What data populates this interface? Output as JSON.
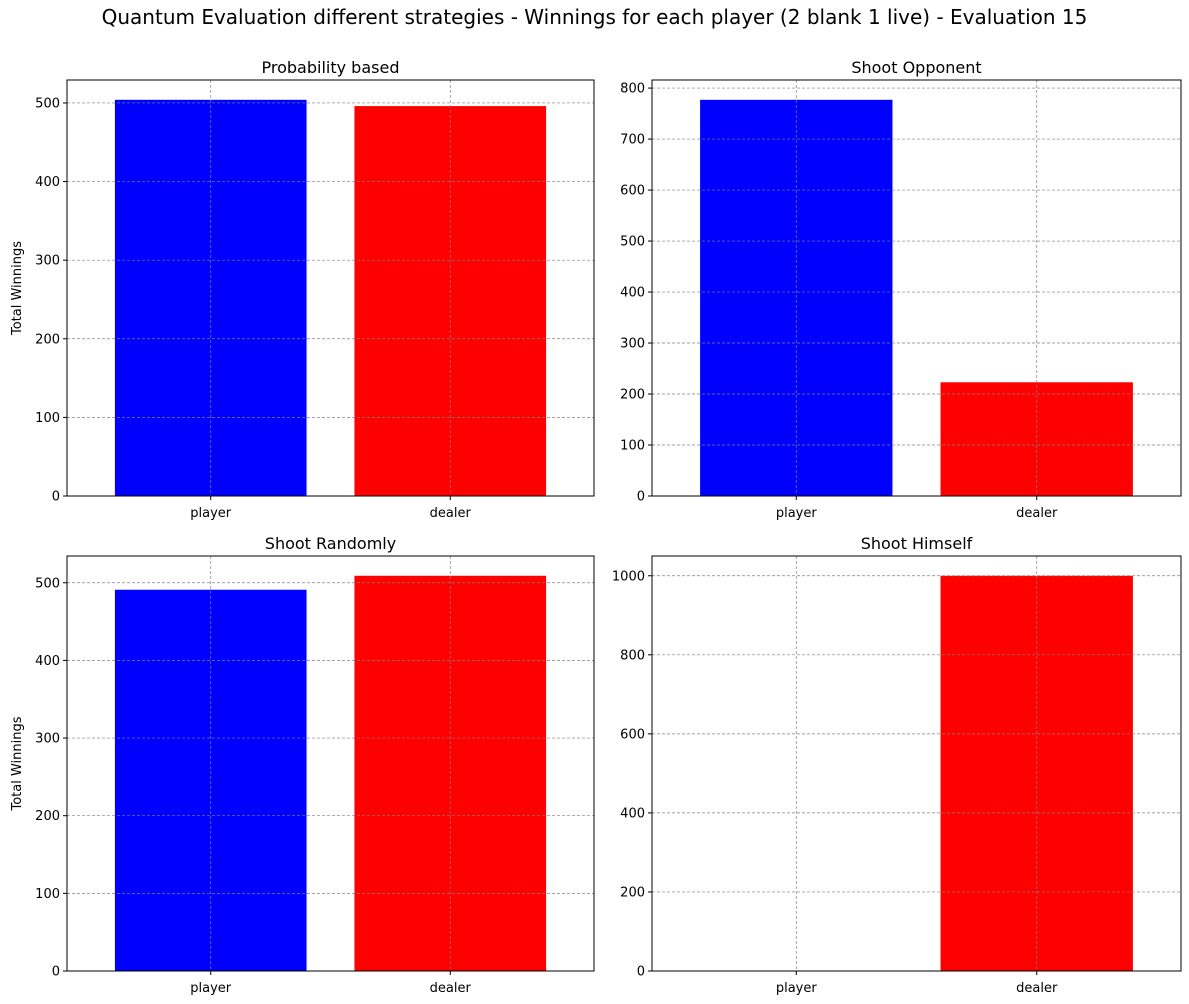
{
  "figure": {
    "suptitle": "Quantum Evaluation different strategies - Winnings for each player (2 blank 1 live) - Evaluation 15"
  },
  "chart_data": [
    {
      "type": "bar",
      "title": "Probability based",
      "categories": [
        "player",
        "dealer"
      ],
      "values": [
        504,
        496
      ],
      "colors": [
        "#0000ff",
        "#ff0000"
      ],
      "xlabel": "",
      "ylabel": "Total Winnings",
      "ylim": [
        0,
        529.2
      ],
      "yticks": [
        0,
        100,
        200,
        300,
        400,
        500
      ],
      "grid": true
    },
    {
      "type": "bar",
      "title": "Shoot Opponent",
      "categories": [
        "player",
        "dealer"
      ],
      "values": [
        777,
        223
      ],
      "colors": [
        "#0000ff",
        "#ff0000"
      ],
      "xlabel": "",
      "ylabel": "",
      "ylim": [
        0,
        815.85
      ],
      "yticks": [
        0,
        100,
        200,
        300,
        400,
        500,
        600,
        700,
        800
      ],
      "grid": true
    },
    {
      "type": "bar",
      "title": "Shoot Randomly",
      "categories": [
        "player",
        "dealer"
      ],
      "values": [
        491,
        509
      ],
      "colors": [
        "#0000ff",
        "#ff0000"
      ],
      "xlabel": "",
      "ylabel": "Total Winnings",
      "ylim": [
        0,
        534.45
      ],
      "yticks": [
        0,
        100,
        200,
        300,
        400,
        500
      ],
      "grid": true
    },
    {
      "type": "bar",
      "title": "Shoot Himself",
      "categories": [
        "player",
        "dealer"
      ],
      "values": [
        0,
        1000
      ],
      "colors": [
        "#0000ff",
        "#ff0000"
      ],
      "xlabel": "",
      "ylabel": "",
      "ylim": [
        0,
        1050
      ],
      "yticks": [
        0,
        200,
        400,
        600,
        800,
        1000
      ],
      "grid": true
    }
  ]
}
